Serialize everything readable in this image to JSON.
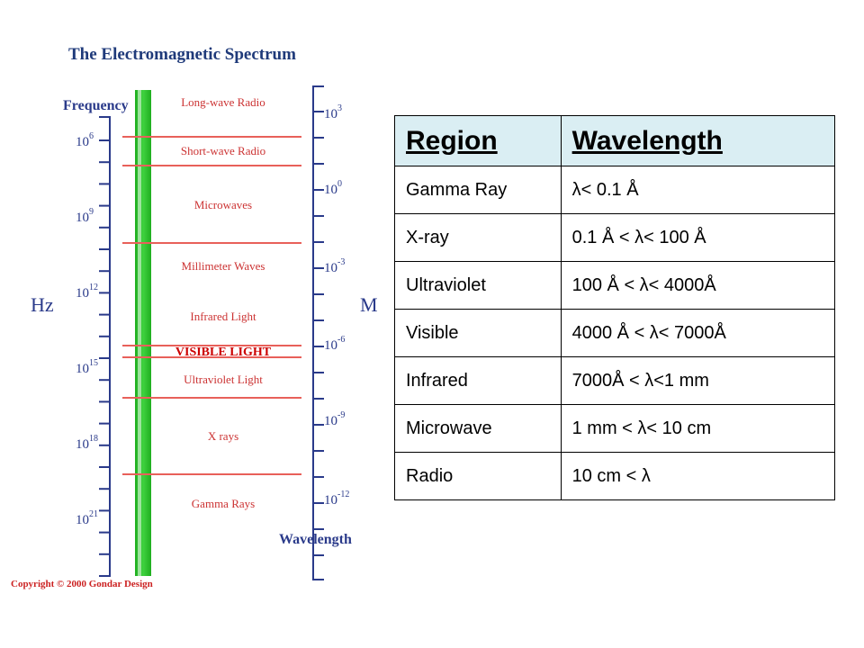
{
  "spectrum": {
    "title": "The Electromagnetic Spectrum",
    "frequency_label": "Frequency",
    "frequency_unit": "Hz",
    "wavelength_label": "Wavelength",
    "wavelength_unit": "M",
    "copyright": "Copyright © 2000 Gondar Design",
    "frequency_ticks": [
      {
        "base": "10",
        "exp": "6"
      },
      {
        "base": "10",
        "exp": "9"
      },
      {
        "base": "10",
        "exp": "12"
      },
      {
        "base": "10",
        "exp": "15"
      },
      {
        "base": "10",
        "exp": "18"
      },
      {
        "base": "10",
        "exp": "21"
      }
    ],
    "wavelength_ticks": [
      {
        "base": "10",
        "exp": "3"
      },
      {
        "base": "10",
        "exp": "0"
      },
      {
        "base": "10",
        "exp": "-3"
      },
      {
        "base": "10",
        "exp": "-6"
      },
      {
        "base": "10",
        "exp": "-9"
      },
      {
        "base": "10",
        "exp": "-12"
      }
    ],
    "bands": [
      "Long-wave Radio",
      "Short-wave Radio",
      "Microwaves",
      "Millimeter Waves",
      "Infrared Light",
      "VISIBLE LIGHT",
      "Ultraviolet Light",
      "X rays",
      "Gamma Rays"
    ],
    "colors": {
      "bar_green": "#2fbf2f",
      "bar_light": "#b8ecb8",
      "divider_red": "#e8605a",
      "band_label_red": "#cc3333",
      "visible_label_red": "#cc0000",
      "title_blue": "#1f3a7a",
      "axis_blue": "#2a3a8a"
    }
  },
  "table": {
    "headers": {
      "region": "Region",
      "wavelength": "Wavelength"
    },
    "rows": [
      {
        "region": "Gamma Ray",
        "wavelength": "λ< 0.1 Å"
      },
      {
        "region": "X-ray",
        "wavelength": "0.1 Å < λ< 100 Å"
      },
      {
        "region": "Ultraviolet",
        "wavelength": "100 Å < λ< 4000Å"
      },
      {
        "region": "Visible",
        "wavelength": "4000 Å < λ< 7000Å"
      },
      {
        "region": "Infrared",
        "wavelength": "7000Å < λ<1 mm"
      },
      {
        "region": "Microwave",
        "wavelength": "1 mm < λ< 10 cm"
      },
      {
        "region": "Radio",
        "wavelength": "10 cm < λ"
      }
    ]
  }
}
